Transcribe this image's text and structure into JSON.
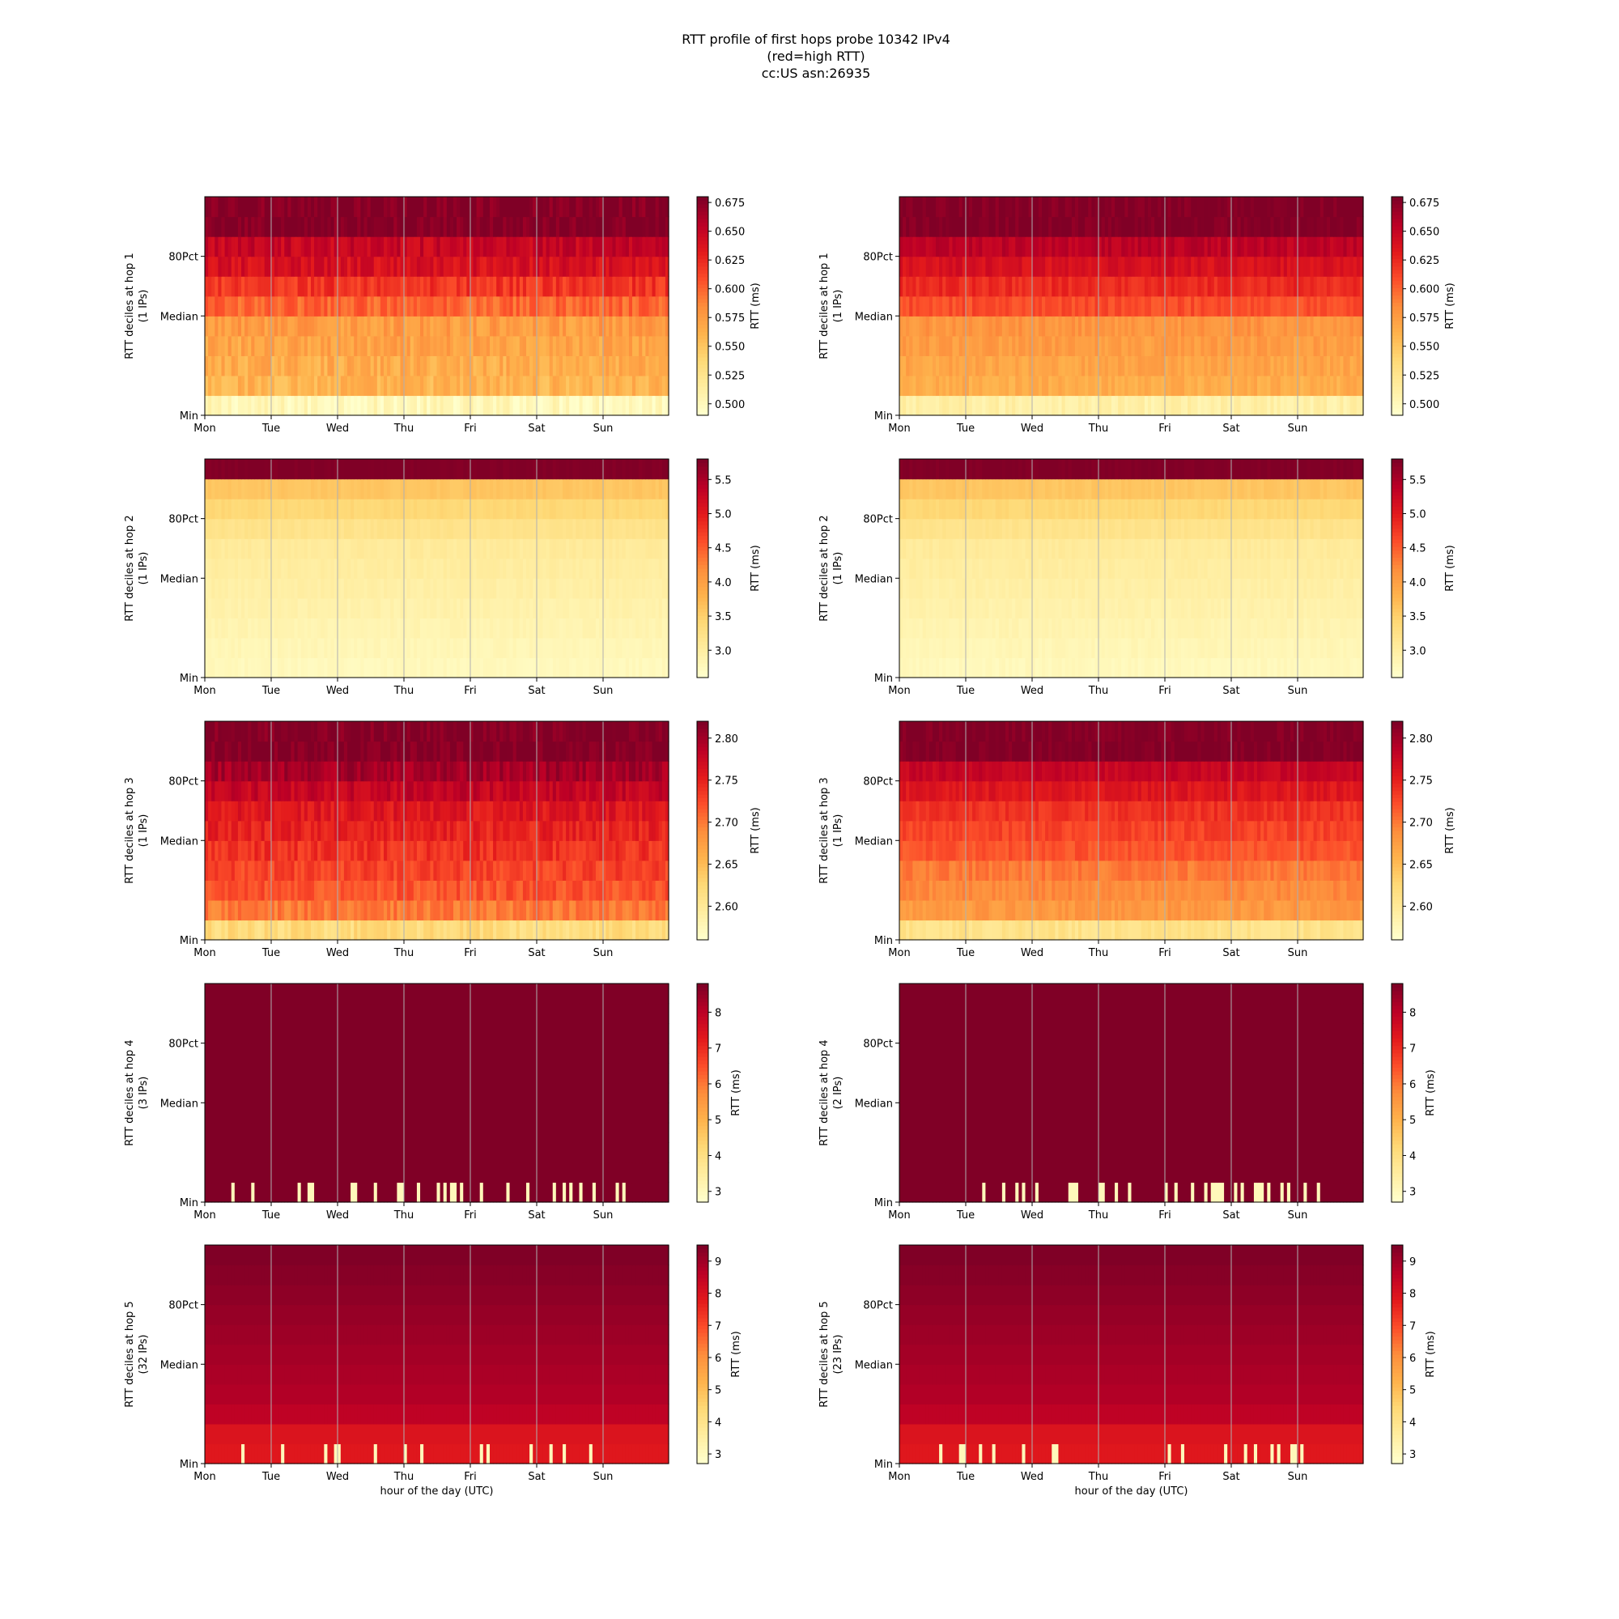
{
  "title_lines": [
    "RTT profile of first hops probe 10342 IPv4",
    "(red=high RTT)",
    "cc:US asn:26935"
  ],
  "chart_data": [
    {
      "type": "heatmap",
      "column": "left",
      "hop": 1,
      "ylabel": "RTT deciles at hop 1",
      "ylabel2": "(1 IPs)",
      "xlabel": "",
      "y_ticks": [
        "Min",
        "Median",
        "80Pct"
      ],
      "x_ticks": [
        "Mon",
        "Tue",
        "Wed",
        "Thu",
        "Fri",
        "Sat",
        "Sun"
      ],
      "colorbar_label": "RTT (ms)",
      "colorbar_range": [
        0.49,
        0.68
      ],
      "colorbar_ticks": [
        "0.500",
        "0.525",
        "0.550",
        "0.575",
        "0.600",
        "0.625",
        "0.650",
        "0.675"
      ],
      "decile_values": [
        0.5,
        0.56,
        0.565,
        0.57,
        0.575,
        0.6,
        0.62,
        0.64,
        0.65,
        0.68,
        0.68
      ],
      "noise": 0.012,
      "spikes": []
    },
    {
      "type": "heatmap",
      "column": "right",
      "hop": 1,
      "ylabel": "RTT deciles at hop 1",
      "ylabel2": "(1 IPs)",
      "xlabel": "",
      "y_ticks": [
        "Min",
        "Median",
        "80Pct"
      ],
      "x_ticks": [
        "Mon",
        "Tue",
        "Wed",
        "Thu",
        "Fri",
        "Sat",
        "Sun"
      ],
      "colorbar_label": "RTT (ms)",
      "colorbar_range": [
        0.49,
        0.68
      ],
      "colorbar_ticks": [
        "0.500",
        "0.525",
        "0.550",
        "0.575",
        "0.600",
        "0.625",
        "0.650",
        "0.675"
      ],
      "decile_values": [
        0.51,
        0.565,
        0.57,
        0.575,
        0.58,
        0.61,
        0.625,
        0.64,
        0.655,
        0.68,
        0.68
      ],
      "noise": 0.008,
      "spikes": []
    },
    {
      "type": "heatmap",
      "column": "left",
      "hop": 2,
      "ylabel": "RTT deciles at hop 2",
      "ylabel2": "(1 IPs)",
      "xlabel": "",
      "y_ticks": [
        "Min",
        "Median",
        "80Pct"
      ],
      "x_ticks": [
        "Mon",
        "Tue",
        "Wed",
        "Thu",
        "Fri",
        "Sat",
        "Sun"
      ],
      "colorbar_label": "RTT (ms)",
      "colorbar_range": [
        2.6,
        5.8
      ],
      "colorbar_ticks": [
        "3.0",
        "3.5",
        "4.0",
        "4.5",
        "5.0",
        "5.5"
      ],
      "decile_values": [
        2.75,
        2.8,
        2.85,
        2.9,
        2.95,
        3.0,
        3.05,
        3.2,
        3.4,
        3.6,
        5.8
      ],
      "noise": 0.05,
      "spikes": []
    },
    {
      "type": "heatmap",
      "column": "right",
      "hop": 2,
      "ylabel": "RTT deciles at hop 2",
      "ylabel2": "(1 IPs)",
      "xlabel": "",
      "y_ticks": [
        "Min",
        "Median",
        "80Pct"
      ],
      "x_ticks": [
        "Mon",
        "Tue",
        "Wed",
        "Thu",
        "Fri",
        "Sat",
        "Sun"
      ],
      "colorbar_label": "RTT (ms)",
      "colorbar_range": [
        2.6,
        5.8
      ],
      "colorbar_ticks": [
        "3.0",
        "3.5",
        "4.0",
        "4.5",
        "5.0",
        "5.5"
      ],
      "decile_values": [
        2.75,
        2.8,
        2.85,
        2.9,
        2.95,
        3.0,
        3.05,
        3.2,
        3.4,
        3.6,
        5.8
      ],
      "noise": 0.05,
      "spikes": []
    },
    {
      "type": "heatmap",
      "column": "left",
      "hop": 3,
      "ylabel": "RTT deciles at hop 3",
      "ylabel2": "(1 IPs)",
      "xlabel": "",
      "y_ticks": [
        "Min",
        "Median",
        "80Pct"
      ],
      "x_ticks": [
        "Mon",
        "Tue",
        "Wed",
        "Thu",
        "Fri",
        "Sat",
        "Sun"
      ],
      "colorbar_label": "RTT (ms)",
      "colorbar_range": [
        2.56,
        2.82
      ],
      "colorbar_ticks": [
        "2.60",
        "2.65",
        "2.70",
        "2.75",
        "2.80"
      ],
      "decile_values": [
        2.62,
        2.7,
        2.72,
        2.73,
        2.74,
        2.75,
        2.76,
        2.78,
        2.8,
        2.82,
        2.82
      ],
      "noise": 0.015,
      "spikes": []
    },
    {
      "type": "heatmap",
      "column": "right",
      "hop": 3,
      "ylabel": "RTT deciles at hop 3",
      "ylabel2": "(1 IPs)",
      "xlabel": "",
      "y_ticks": [
        "Min",
        "Median",
        "80Pct"
      ],
      "x_ticks": [
        "Mon",
        "Tue",
        "Wed",
        "Thu",
        "Fri",
        "Sat",
        "Sun"
      ],
      "colorbar_label": "RTT (ms)",
      "colorbar_range": [
        2.56,
        2.82
      ],
      "colorbar_ticks": [
        "2.60",
        "2.65",
        "2.70",
        "2.75",
        "2.80"
      ],
      "decile_values": [
        2.61,
        2.68,
        2.69,
        2.7,
        2.72,
        2.73,
        2.74,
        2.76,
        2.78,
        2.82,
        2.82
      ],
      "noise": 0.01,
      "spikes": []
    },
    {
      "type": "heatmap",
      "column": "left",
      "hop": 4,
      "ylabel": "RTT deciles at hop 4",
      "ylabel2": "(3 IPs)",
      "xlabel": "",
      "y_ticks": [
        "Min",
        "Median",
        "80Pct"
      ],
      "x_ticks": [
        "Mon",
        "Tue",
        "Wed",
        "Thu",
        "Fri",
        "Sat",
        "Sun"
      ],
      "colorbar_label": "RTT (ms)",
      "colorbar_range": [
        2.7,
        8.8
      ],
      "colorbar_ticks": [
        "3",
        "4",
        "5",
        "6",
        "7",
        "8"
      ],
      "decile_values": [
        8.8,
        8.8,
        8.8,
        8.8,
        8.8,
        8.8,
        8.8,
        8.8,
        8.8,
        8.8,
        8.8
      ],
      "noise": 0.0,
      "spikes": [
        8,
        14,
        28,
        31,
        32,
        44,
        45,
        51,
        58,
        59,
        64,
        70,
        72,
        74,
        75,
        77,
        83,
        91,
        97,
        105,
        108,
        110,
        113,
        117,
        124,
        126
      ]
    },
    {
      "type": "heatmap",
      "column": "right",
      "hop": 4,
      "ylabel": "RTT deciles at hop 4",
      "ylabel2": "(2 IPs)",
      "xlabel": "",
      "y_ticks": [
        "Min",
        "Median",
        "80Pct"
      ],
      "x_ticks": [
        "Mon",
        "Tue",
        "Wed",
        "Thu",
        "Fri",
        "Sat",
        "Sun"
      ],
      "colorbar_label": "RTT (ms)",
      "colorbar_range": [
        2.7,
        8.8
      ],
      "colorbar_ticks": [
        "3",
        "4",
        "5",
        "6",
        "7",
        "8"
      ],
      "decile_values": [
        8.8,
        8.8,
        8.8,
        8.8,
        8.8,
        8.8,
        8.8,
        8.8,
        8.8,
        8.8,
        8.8
      ],
      "noise": 0.0,
      "spikes": [
        25,
        31,
        35,
        37,
        41,
        51,
        52,
        53,
        60,
        61,
        65,
        69,
        80,
        83,
        88,
        92,
        94,
        95,
        96,
        97,
        101,
        103,
        107,
        108,
        109,
        111,
        115,
        117,
        122,
        126
      ]
    },
    {
      "type": "heatmap",
      "column": "left",
      "hop": 5,
      "ylabel": "RTT deciles at hop 5",
      "ylabel2": "(32 IPs)",
      "xlabel": "hour of the day (UTC)",
      "y_ticks": [
        "Min",
        "Median",
        "80Pct"
      ],
      "x_ticks": [
        "Mon",
        "Tue",
        "Wed",
        "Thu",
        "Fri",
        "Sat",
        "Sun"
      ],
      "colorbar_label": "RTT (ms)",
      "colorbar_range": [
        2.7,
        9.5
      ],
      "colorbar_ticks": [
        "3",
        "4",
        "5",
        "6",
        "7",
        "8",
        "9"
      ],
      "decile_values": [
        7.9,
        8.0,
        8.6,
        8.8,
        8.9,
        9.0,
        9.1,
        9.2,
        9.3,
        9.4,
        9.5
      ],
      "noise": 0.0,
      "spikes": [
        11,
        23,
        36,
        39,
        40,
        51,
        60,
        65,
        83,
        85,
        98,
        104,
        108,
        116
      ]
    },
    {
      "type": "heatmap",
      "column": "right",
      "hop": 5,
      "ylabel": "RTT deciles at hop 5",
      "ylabel2": "(23 IPs)",
      "xlabel": "hour of the day (UTC)",
      "y_ticks": [
        "Min",
        "Median",
        "80Pct"
      ],
      "x_ticks": [
        "Mon",
        "Tue",
        "Wed",
        "Thu",
        "Fri",
        "Sat",
        "Sun"
      ],
      "colorbar_label": "RTT (ms)",
      "colorbar_range": [
        2.7,
        9.5
      ],
      "colorbar_ticks": [
        "3",
        "4",
        "5",
        "6",
        "7",
        "8",
        "9"
      ],
      "decile_values": [
        7.9,
        8.0,
        8.6,
        8.8,
        8.9,
        9.0,
        9.1,
        9.2,
        9.3,
        9.4,
        9.5
      ],
      "noise": 0.0,
      "spikes": [
        12,
        18,
        19,
        24,
        28,
        37,
        46,
        47,
        81,
        85,
        98,
        104,
        107,
        112,
        114,
        118,
        119,
        121
      ]
    }
  ]
}
